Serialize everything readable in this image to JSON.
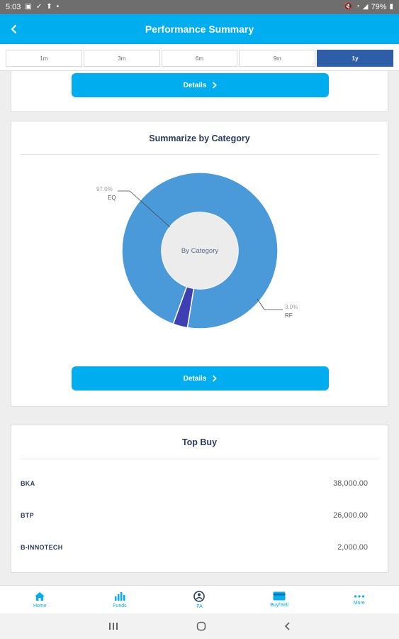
{
  "status_bar": {
    "time": "5:03",
    "battery": "79%"
  },
  "header": {
    "title": "Performance Summary"
  },
  "tabs": [
    {
      "label": "1m"
    },
    {
      "label": "3m"
    },
    {
      "label": "6m"
    },
    {
      "label": "9m"
    },
    {
      "label": "1y",
      "active": true
    }
  ],
  "summary_card": {
    "details_label": "Details"
  },
  "category_card": {
    "title": "Summarize by Category",
    "center_label": "By Category",
    "details_label": "Details",
    "chart_data": {
      "type": "pie",
      "title": "Summarize by Category",
      "center_text": "By Category",
      "slices": [
        {
          "label": "EQ",
          "value": 97.0,
          "display": "97.0%",
          "color": "#4a9ad9"
        },
        {
          "label": "RF",
          "value": 3.0,
          "display": "3.0%",
          "color": "#3d3fb3"
        }
      ]
    }
  },
  "top_buy": {
    "title": "Top Buy",
    "rows": [
      {
        "code": "BKA",
        "value": "38,000.00"
      },
      {
        "code": "BTP",
        "value": "26,000.00"
      },
      {
        "code": "B-INNOTECH",
        "value": "2,000.00"
      }
    ]
  },
  "bottom_nav": [
    {
      "label": "Home",
      "icon": "home-icon"
    },
    {
      "label": "Funds",
      "icon": "bar-chart-icon"
    },
    {
      "label": "FA",
      "icon": "fa-icon"
    },
    {
      "label": "Buy/Sell",
      "icon": "card-icon"
    },
    {
      "label": "More",
      "icon": "more-icon"
    }
  ],
  "colors": {
    "primary": "#00aeef",
    "tab_active": "#2f5ea8",
    "title_text": "#2a3b5c"
  }
}
